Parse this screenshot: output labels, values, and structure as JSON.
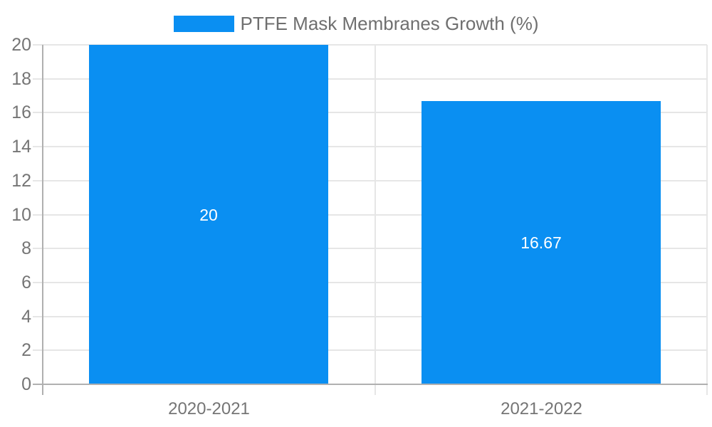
{
  "chart_data": {
    "type": "bar",
    "title": "PTFE Mask Membranes Growth (%)",
    "categories": [
      "2020-2021",
      "2021-2022"
    ],
    "series": [
      {
        "name": "PTFE Mask Membranes Growth (%)",
        "values": [
          20,
          16.67
        ],
        "value_labels": [
          "20",
          "16.67"
        ]
      }
    ],
    "xlabel": "",
    "ylabel": "",
    "ylim": [
      0,
      20
    ],
    "ytick_step": 2,
    "ytick_labels": [
      "0",
      "2",
      "4",
      "6",
      "8",
      "10",
      "12",
      "14",
      "16",
      "18",
      "20"
    ],
    "grid": true,
    "legend_position": "top-center",
    "value_label_position": "inside-center",
    "colors": {
      "bar": "#0a8ff2",
      "grid": "#e6e6e6",
      "axis": "#b0b0b0",
      "tick_text": "#757575",
      "legend_text": "#6f6f6f",
      "data_label": "#ffffff",
      "background": "#ffffff"
    }
  }
}
